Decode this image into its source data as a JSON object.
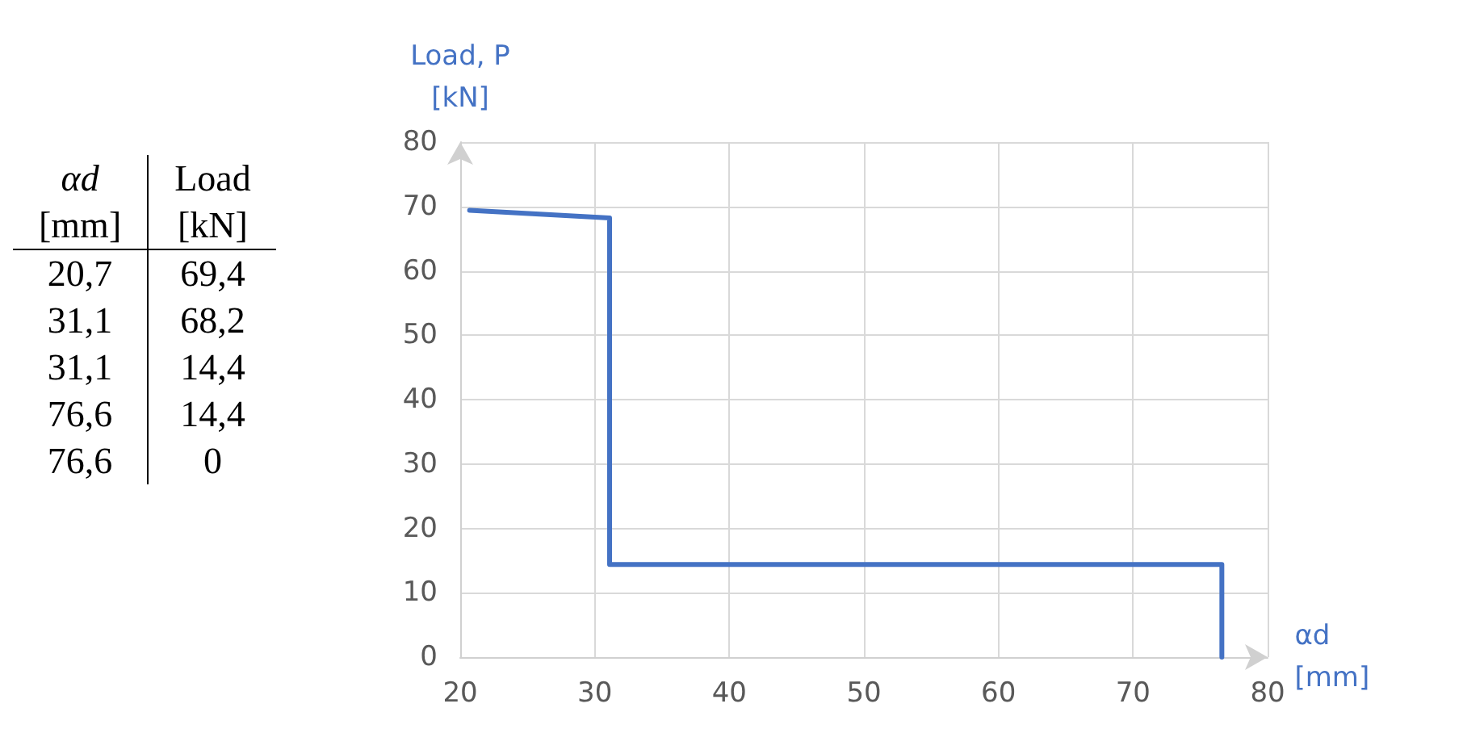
{
  "chart_data": {
    "type": "line",
    "xlabel": "αd\n[mm]",
    "ylabel": "Load, P\n[kN]",
    "annotations": [
      "αd\n[mm]",
      "Load\n[kN]",
      "20,7",
      "69,4",
      "31,1",
      "68,2",
      "31,1",
      "14,4",
      "76,6",
      "14,4",
      "76,6",
      "0"
    ],
    "x": [
      20.7,
      31.1,
      31.1,
      76.6,
      76.6
    ],
    "series": [
      {
        "color": "#4472c4",
        "values": [
          69.4,
          68.2,
          14.4,
          14.4,
          0
        ]
      }
    ],
    "xlim": [
      20,
      80
    ],
    "xticks": [
      20,
      30,
      40,
      50,
      60,
      70,
      80
    ],
    "ylim": [
      0,
      80
    ],
    "yticks": [
      0,
      10,
      20,
      30,
      40,
      50,
      60,
      70,
      80
    ],
    "grid": true,
    "marker": "none",
    "line_style": "solid"
  }
}
